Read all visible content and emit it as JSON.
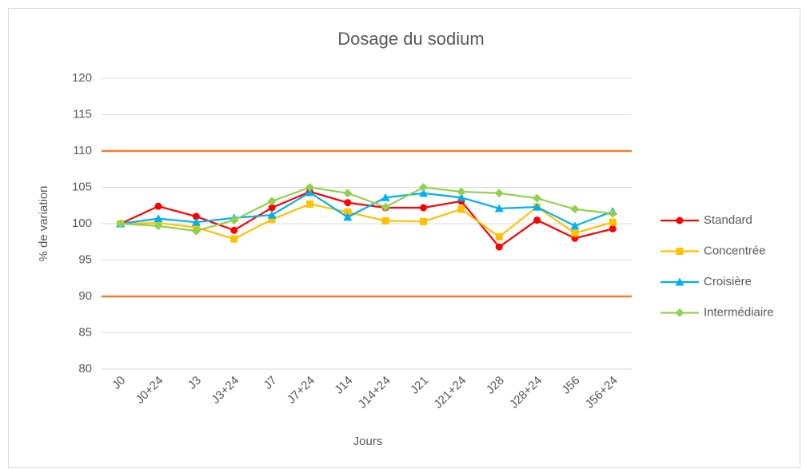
{
  "chart_data": {
    "type": "line",
    "title": "Dosage du sodium",
    "x_label": "Jours",
    "y_label": "% de variation",
    "categories": [
      "J0",
      "J0+24",
      "J3",
      "J3+24",
      "J7",
      "J7+24",
      "J14",
      "J14+24",
      "J21",
      "J21+24",
      "J28",
      "J28+24",
      "J56",
      "J56+24"
    ],
    "series": [
      {
        "name": "Standard",
        "color": "#ff0000",
        "marker": "circle",
        "values": [
          100,
          102.4,
          101,
          99.1,
          102.2,
          104.4,
          102.9,
          102.2,
          102.2,
          103.1,
          96.8,
          100.5,
          98,
          99.3
        ]
      },
      {
        "name": "Concentrée",
        "color": "#ffc000",
        "marker": "square",
        "values": [
          100,
          100.1,
          99.5,
          97.9,
          100.6,
          102.7,
          101.6,
          100.4,
          100.3,
          102,
          98.2,
          102.3,
          98.7,
          100.2
        ]
      },
      {
        "name": "Croisière",
        "color": "#00b0f0",
        "marker": "triangle",
        "values": [
          100,
          100.7,
          100.2,
          100.8,
          101.2,
          104.3,
          100.9,
          103.6,
          104.2,
          103.6,
          102.1,
          102.3,
          99.7,
          101.7
        ]
      },
      {
        "name": "Intermédiaire",
        "color": "#92d050",
        "marker": "diamond",
        "values": [
          100,
          99.7,
          99,
          100.5,
          103.1,
          105,
          104.2,
          102.3,
          105,
          104.4,
          104.2,
          103.5,
          102,
          101.4
        ]
      }
    ],
    "reference_lines": [
      110,
      90
    ],
    "reference_color": "#ed7d31",
    "ylim": [
      80,
      120
    ],
    "yticks": [
      80,
      85,
      90,
      95,
      100,
      105,
      110,
      115,
      120
    ],
    "grid": true,
    "legend": "right"
  }
}
